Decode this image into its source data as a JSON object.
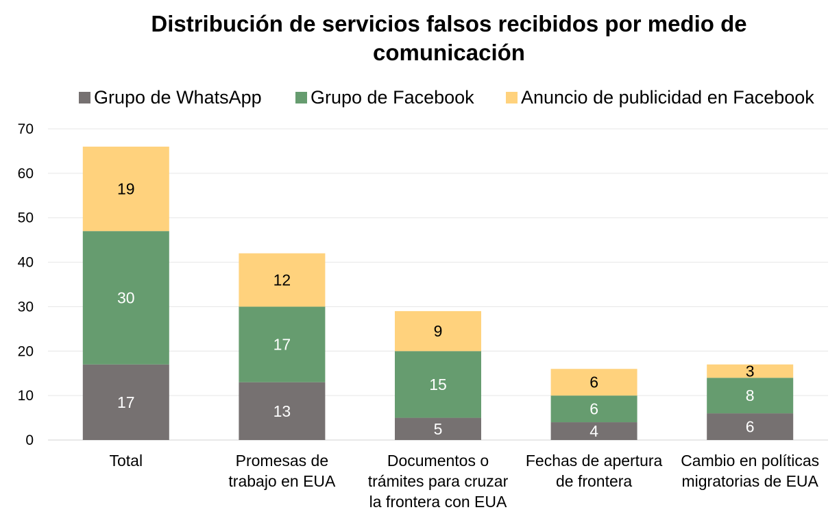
{
  "chart_data": {
    "type": "bar",
    "stacked": true,
    "title_lines": [
      "Distribución de servicios falsos recibidos por medio de",
      "comunicación"
    ],
    "xlabel": "",
    "ylabel": "",
    "ylim": [
      0,
      70
    ],
    "yticks": [
      0,
      10,
      20,
      30,
      40,
      50,
      60,
      70
    ],
    "grid": true,
    "legend_position": "top",
    "categories": [
      {
        "lines": [
          "Total"
        ]
      },
      {
        "lines": [
          "Promesas de",
          "trabajo en EUA"
        ]
      },
      {
        "lines": [
          "Documentos o",
          "trámites para cruzar",
          "la frontera con EUA"
        ]
      },
      {
        "lines": [
          "Fechas de apertura",
          "de frontera"
        ]
      },
      {
        "lines": [
          "Cambio en políticas",
          "migratorias de EUA"
        ]
      }
    ],
    "series": [
      {
        "name": "Grupo de WhatsApp",
        "color": "#767171",
        "label_color": "#ffffff",
        "values": [
          17,
          13,
          5,
          4,
          6
        ]
      },
      {
        "name": "Grupo de Facebook",
        "color": "#669c6f",
        "label_color": "#ffffff",
        "values": [
          30,
          17,
          15,
          6,
          8
        ]
      },
      {
        "name": "Anuncio de publicidad en Facebook",
        "color": "#ffd27d",
        "label_color": "#000000",
        "values": [
          19,
          12,
          9,
          6,
          3
        ]
      }
    ]
  }
}
